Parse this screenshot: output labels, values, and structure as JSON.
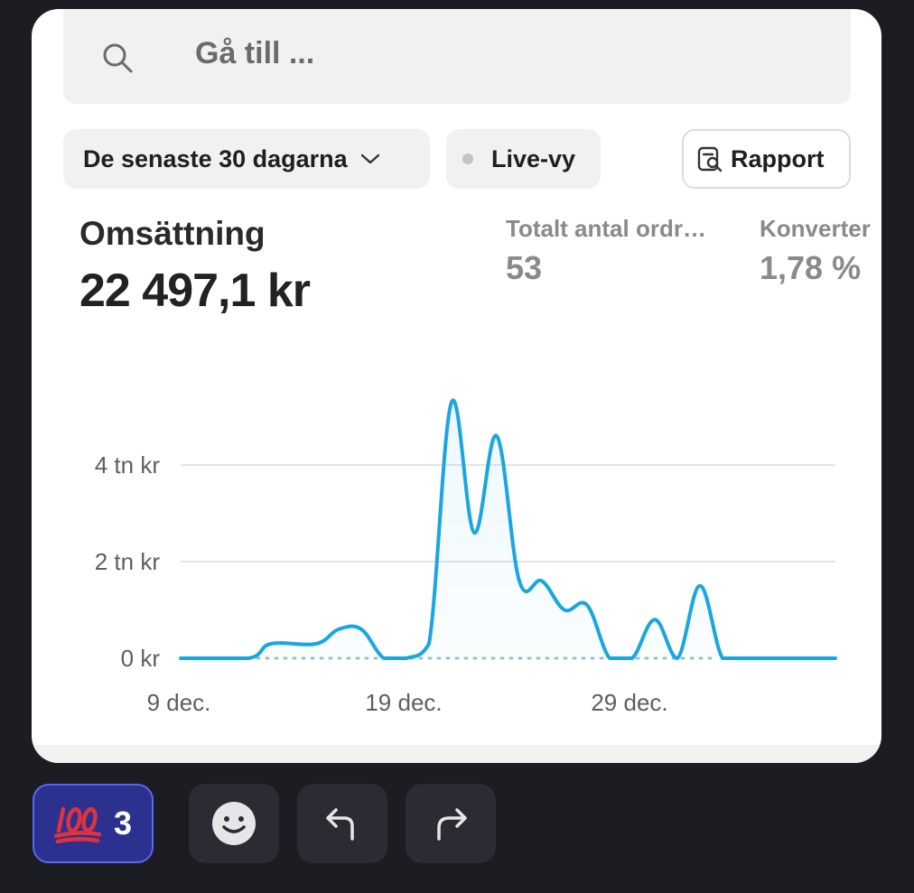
{
  "search": {
    "placeholder": "Gå till ..."
  },
  "filters": {
    "range_label": "De senaste 30 dagarna",
    "live_label": "Live-vy",
    "report_label": "Rapport"
  },
  "metrics": {
    "revenue_label": "Omsättning",
    "revenue_value": "22 497,1 kr",
    "orders_label": "Totalt antal ordr…",
    "orders_value": "53",
    "conversion_label": "Konverter",
    "conversion_value": "1,78 %"
  },
  "chart_data": {
    "type": "line",
    "y_ticks": [
      "4 tn kr",
      "2 tn kr",
      "0 kr"
    ],
    "x_ticks": [
      "9 dec.",
      "19 dec.",
      "29 dec."
    ],
    "ylim": [
      0,
      5000
    ],
    "grid": true,
    "series": [
      {
        "color": "#1aa6e0",
        "points": [
          [
            0,
            0
          ],
          [
            3,
            0
          ],
          [
            4,
            300
          ],
          [
            6,
            300
          ],
          [
            7,
            600
          ],
          [
            8,
            600
          ],
          [
            9,
            0
          ],
          [
            10,
            0
          ],
          [
            11,
            300
          ],
          [
            12,
            5300
          ],
          [
            13,
            2600
          ],
          [
            14,
            4600
          ],
          [
            15,
            1600
          ],
          [
            16,
            1600
          ],
          [
            17,
            1000
          ],
          [
            18,
            1100
          ],
          [
            19,
            0
          ],
          [
            20,
            0
          ],
          [
            21,
            800
          ],
          [
            22,
            0
          ],
          [
            23,
            1500
          ],
          [
            24,
            0
          ],
          [
            25,
            0
          ],
          [
            29,
            0
          ]
        ]
      }
    ]
  },
  "reactions": {
    "hundred_count": "3",
    "icons": [
      "hundred-emoji-icon",
      "smiley-face-icon",
      "reply-arrow-icon",
      "forward-arrow-icon"
    ]
  }
}
